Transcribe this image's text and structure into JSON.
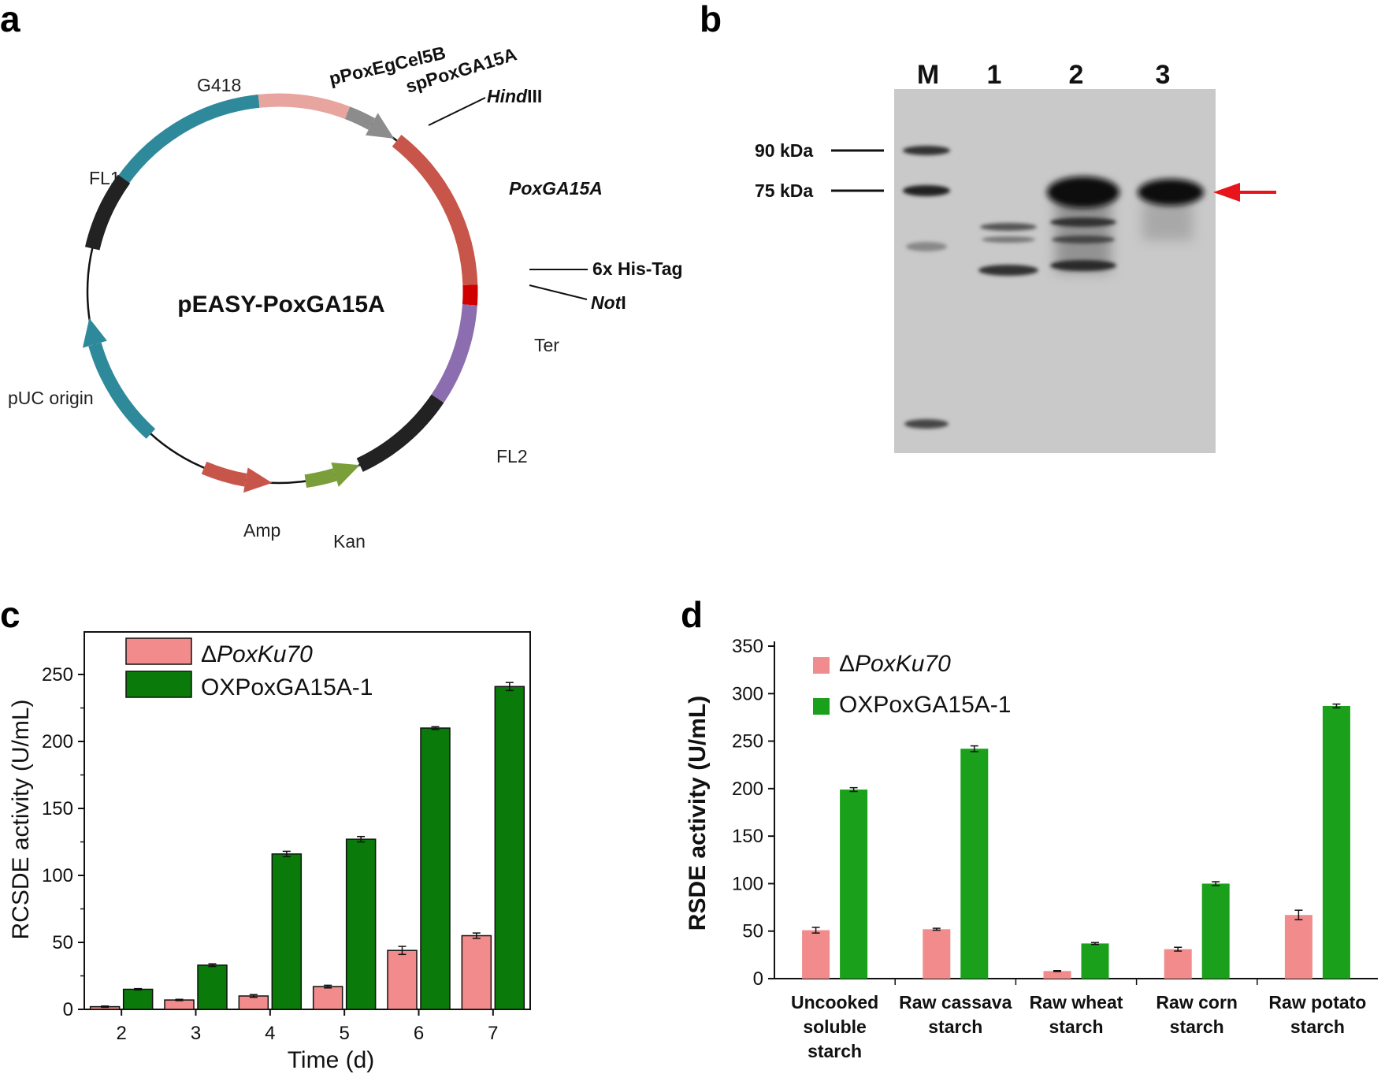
{
  "panels": {
    "a": {
      "label": "a",
      "plasmid_name": "pEASY-PoxGA15A",
      "segments": [
        {
          "name": "G418",
          "color": "#2e8a9a"
        },
        {
          "name": "pPoxEgCel5B",
          "color": "#e8a5a0"
        },
        {
          "name": "spPoxGA15A",
          "color": "#8c8c8c"
        },
        {
          "name": "PoxGA15A",
          "color": "#c8554a"
        },
        {
          "name": "6x His-Tag",
          "color": "#d00000"
        },
        {
          "name": "Ter",
          "color": "#8c6eb0"
        },
        {
          "name": "FL2",
          "color": "#222222"
        },
        {
          "name": "Kan",
          "color": "#7a9e3a"
        },
        {
          "name": "Amp",
          "color": "#c8554a"
        },
        {
          "name": "pUC origin",
          "color": "#2e8a9a"
        },
        {
          "name": "FL1",
          "color": "#222222"
        }
      ],
      "sites": {
        "hind_prefix": "Hind",
        "hind_suffix": "III",
        "not_prefix": "Not",
        "not_suffix": "I"
      }
    },
    "b": {
      "label": "b",
      "lanes": [
        "M",
        "1",
        "2",
        "3"
      ],
      "markers": [
        "90 kDa",
        "75 kDa"
      ],
      "arrow_color": "#e8141c"
    },
    "c": {
      "label": "c"
    },
    "d": {
      "label": "d"
    }
  },
  "chart_data": [
    {
      "panel": "c",
      "type": "bar",
      "xlabel": "Time (d)",
      "ylabel": "RCSDE activity (U/mL)",
      "categories": [
        "2",
        "3",
        "4",
        "5",
        "6",
        "7"
      ],
      "ylim": [
        0,
        270
      ],
      "yticks": [
        0,
        50,
        100,
        150,
        200,
        250
      ],
      "grid": false,
      "legend_position": "top-left",
      "series": [
        {
          "name": "ΔPoxKu70",
          "name_prefix": "Δ",
          "name_italic": "PoxKu70",
          "color": "#f28b8b",
          "values": [
            2,
            7,
            10,
            17,
            44,
            55
          ],
          "errors": [
            0.5,
            0.5,
            1,
            1,
            3,
            2
          ]
        },
        {
          "name": "OXPoxGA15A-1",
          "color": "#0a7a0a",
          "values": [
            15,
            33,
            116,
            127,
            210,
            241
          ],
          "errors": [
            0.5,
            1,
            2,
            2,
            1,
            3
          ]
        }
      ]
    },
    {
      "panel": "d",
      "type": "bar",
      "xlabel": "",
      "ylabel": "RSDE activity (U/mL)",
      "categories": [
        [
          "Uncooked",
          "soluble",
          "starch"
        ],
        [
          "Raw cassava",
          "starch"
        ],
        [
          "Raw wheat",
          "starch"
        ],
        [
          "Raw corn",
          "starch"
        ],
        [
          "Raw potato",
          "starch"
        ]
      ],
      "ylim": [
        0,
        350
      ],
      "yticks": [
        0,
        50,
        100,
        150,
        200,
        250,
        300,
        350
      ],
      "grid": false,
      "legend_position": "top-left",
      "series": [
        {
          "name": "ΔPoxKu70",
          "name_prefix": "Δ",
          "name_italic": "PoxKu70",
          "color": "#f28b8b",
          "values": [
            51,
            52,
            8,
            31,
            67
          ],
          "errors": [
            3,
            1,
            0.5,
            2,
            5
          ]
        },
        {
          "name": "OXPoxGA15A-1",
          "color": "#1aa01a",
          "values": [
            199,
            242,
            37,
            100,
            287
          ],
          "errors": [
            2,
            3,
            1,
            2,
            2
          ]
        }
      ]
    }
  ]
}
